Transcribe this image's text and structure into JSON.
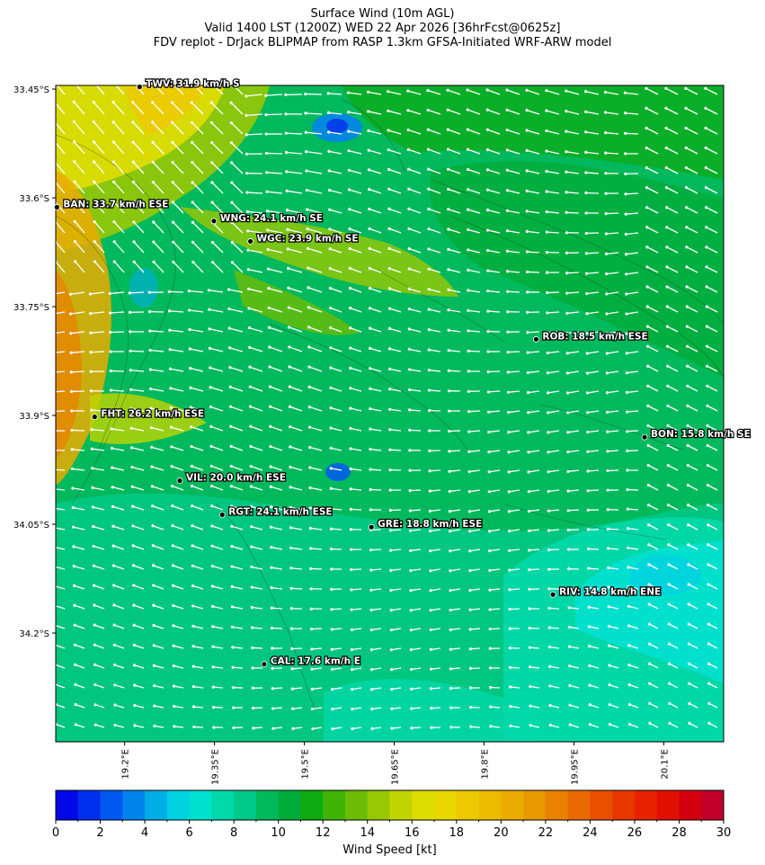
{
  "title": {
    "line1": "Surface Wind (10m AGL)",
    "line2": "Valid 1400 LST (1200Z) WED 22 Apr 2026 [36hrFcst@0625z]",
    "line3": "FDV replot - DrJack BLIPMAP from RASP 1.3km GFSA-Initiated WRF-ARW model"
  },
  "chart_data": {
    "type": "heatmap",
    "description_units": "Wind Speed [kt]",
    "lat_ticks": [
      "33.45°S",
      "33.6°S",
      "33.75°S",
      "33.9°S",
      "34.05°S",
      "34.2°S"
    ],
    "lat_tick_values": [
      -33.45,
      -33.6,
      -33.75,
      -33.9,
      -34.05,
      -34.2
    ],
    "lon_ticks": [
      "19.2°E",
      "19.35°E",
      "19.5°E",
      "19.65°E",
      "19.8°E",
      "19.95°E",
      "20.1°E"
    ],
    "lon_tick_values": [
      19.2,
      19.35,
      19.5,
      19.65,
      19.8,
      19.95,
      20.1
    ],
    "xlim": [
      19.085,
      20.2
    ],
    "ylim": [
      -34.35,
      -33.445
    ],
    "stations": [
      {
        "code": "TWV",
        "label": "TWV: 31.9 km/h S",
        "lon": 19.225,
        "lat": -33.447,
        "speed_kmh": 31.9,
        "dir": "S"
      },
      {
        "code": "BAN",
        "label": "BAN: 33.7 km/h ESE",
        "lon": 19.087,
        "lat": -33.613,
        "speed_kmh": 33.7,
        "dir": "ESE"
      },
      {
        "code": "WNG",
        "label": "WNG: 24.1 km/h SE",
        "lon": 19.349,
        "lat": -33.632,
        "speed_kmh": 24.1,
        "dir": "SE"
      },
      {
        "code": "WGC",
        "label": "WGC: 23.9 km/h SE",
        "lon": 19.41,
        "lat": -33.66,
        "speed_kmh": 23.9,
        "dir": "SE"
      },
      {
        "code": "ROB",
        "label": "ROB: 18.5 km/h ESE",
        "lon": 19.887,
        "lat": -33.795,
        "speed_kmh": 18.5,
        "dir": "ESE"
      },
      {
        "code": "FHT",
        "label": "FHT: 26.2 km/h ESE",
        "lon": 19.15,
        "lat": -33.902,
        "speed_kmh": 26.2,
        "dir": "ESE"
      },
      {
        "code": "BON",
        "label": "BON: 15.8 km/h SE",
        "lon": 20.068,
        "lat": -33.93,
        "speed_kmh": 15.8,
        "dir": "SE"
      },
      {
        "code": "VIL",
        "label": "VIL: 20.0 km/h ESE",
        "lon": 19.292,
        "lat": -33.99,
        "speed_kmh": 20.0,
        "dir": "ESE"
      },
      {
        "code": "RGT",
        "label": "RGT: 24.1 km/h ESE",
        "lon": 19.363,
        "lat": -34.037,
        "speed_kmh": 24.1,
        "dir": "ESE"
      },
      {
        "code": "GRE",
        "label": "GRE: 18.8 km/h ESE",
        "lon": 19.612,
        "lat": -34.054,
        "speed_kmh": 18.8,
        "dir": "ESE"
      },
      {
        "code": "RIV",
        "label": "RIV: 14.8 km/h ENE",
        "lon": 19.915,
        "lat": -34.147,
        "speed_kmh": 14.8,
        "dir": "ENE"
      },
      {
        "code": "CAL",
        "label": "CAL: 17.6 km/h E",
        "lon": 19.433,
        "lat": -34.243,
        "speed_kmh": 17.6,
        "dir": "E"
      }
    ],
    "colorbar": {
      "label": "Wind Speed [kt]",
      "min": 0,
      "max": 30,
      "step": 1,
      "tick_labels": [
        "0",
        "2",
        "4",
        "6",
        "8",
        "10",
        "12",
        "14",
        "16",
        "18",
        "20",
        "22",
        "24",
        "26",
        "28",
        "30"
      ],
      "tick_values": [
        0,
        2,
        4,
        6,
        8,
        10,
        12,
        14,
        16,
        18,
        20,
        22,
        24,
        26,
        28,
        30
      ],
      "colors": [
        "#0008e8",
        "#0030ee",
        "#0058f0",
        "#0084ec",
        "#00aee6",
        "#00d2e2",
        "#00e0cf",
        "#00d8aa",
        "#00c886",
        "#00b95c",
        "#00ad3a",
        "#10aa12",
        "#40b208",
        "#6cbc06",
        "#98c804",
        "#c2d402",
        "#dcdc00",
        "#e8d800",
        "#ecca00",
        "#ecbc00",
        "#eaac00",
        "#e89800",
        "#e88200",
        "#e86a00",
        "#e85000",
        "#e83800",
        "#e62200",
        "#e01000",
        "#d40010",
        "#c0002a"
      ]
    },
    "field_colors": {
      "low": "#00e0cf",
      "mid": "#00b95c",
      "high": "#dcdc00",
      "peak": "#e8a000"
    },
    "vector_color": "#ffffff",
    "grid": false
  }
}
